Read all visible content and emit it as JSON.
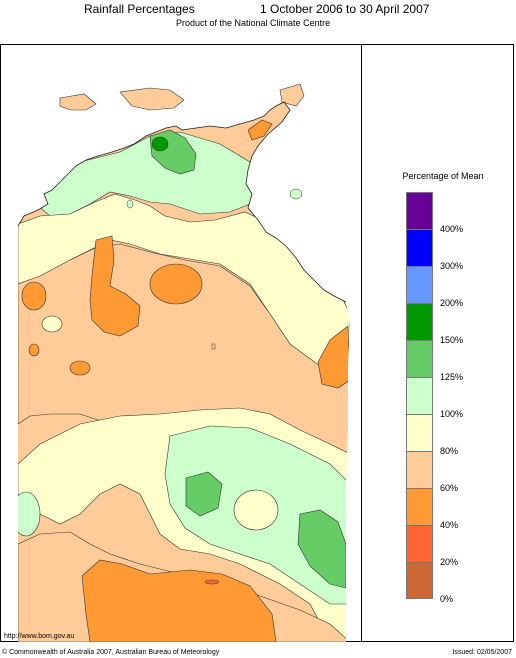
{
  "header": {
    "title": "Rainfall Percentages",
    "dates": "1 October 2006 to 30 April 2007",
    "subtitle": "Product of the National Climate Centre"
  },
  "legend": {
    "title": "Percentage of Mean",
    "classes": [
      {
        "color": "#660099",
        "label": "400%"
      },
      {
        "color": "#0000ff",
        "label": "300%"
      },
      {
        "color": "#6699ff",
        "label": "200%"
      },
      {
        "color": "#009900",
        "label": "150%"
      },
      {
        "color": "#66cc66",
        "label": "125%"
      },
      {
        "color": "#ccffcc",
        "label": "100%"
      },
      {
        "color": "#ffffcc",
        "label": "80%"
      },
      {
        "color": "#ffcc99",
        "label": "60%"
      },
      {
        "color": "#ff9933",
        "label": "40%"
      },
      {
        "color": "#ff6633",
        "label": "20%"
      },
      {
        "color": "#cc6633",
        "label": "0%"
      }
    ]
  },
  "footer": {
    "url": "http://www.bom.gov.au",
    "copyright": "© Commonwealth of Australia 2007, Australian Bureau of Meteorology",
    "issued": "Issued: 02/05/2007"
  }
}
